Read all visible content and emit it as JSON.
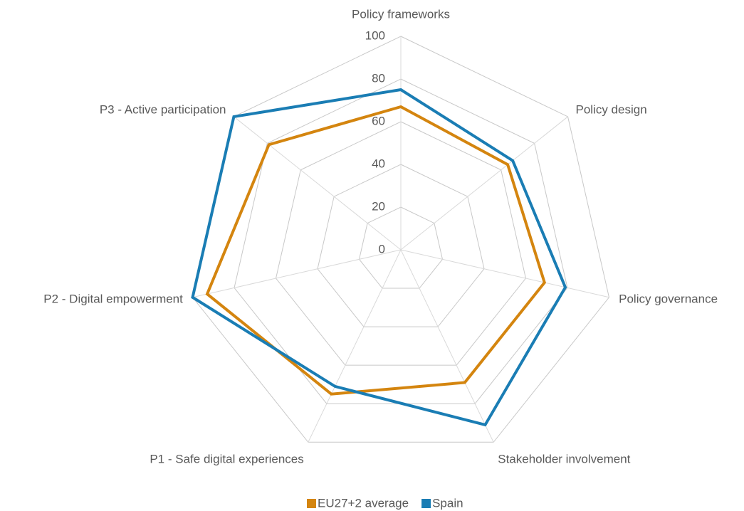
{
  "chart_data": {
    "type": "radar",
    "categories": [
      "Policy frameworks",
      "Policy design",
      "Policy governance",
      "Stakeholder involvement",
      "P1 - Safe digital experiences",
      "P2 - Digital empowerment",
      "P3 - Active participation"
    ],
    "series": [
      {
        "name": "EU27+2 average",
        "color": "#d4850f",
        "values": [
          67,
          64,
          69,
          69,
          75,
          93,
          79
        ]
      },
      {
        "name": "Spain",
        "color": "#1a7db4",
        "values": [
          75,
          67,
          79,
          91,
          71,
          100,
          100
        ]
      }
    ],
    "ylim": [
      0,
      100
    ],
    "yticks": [
      0,
      20,
      40,
      60,
      80,
      100
    ],
    "grid": true,
    "legend": "bottom"
  }
}
